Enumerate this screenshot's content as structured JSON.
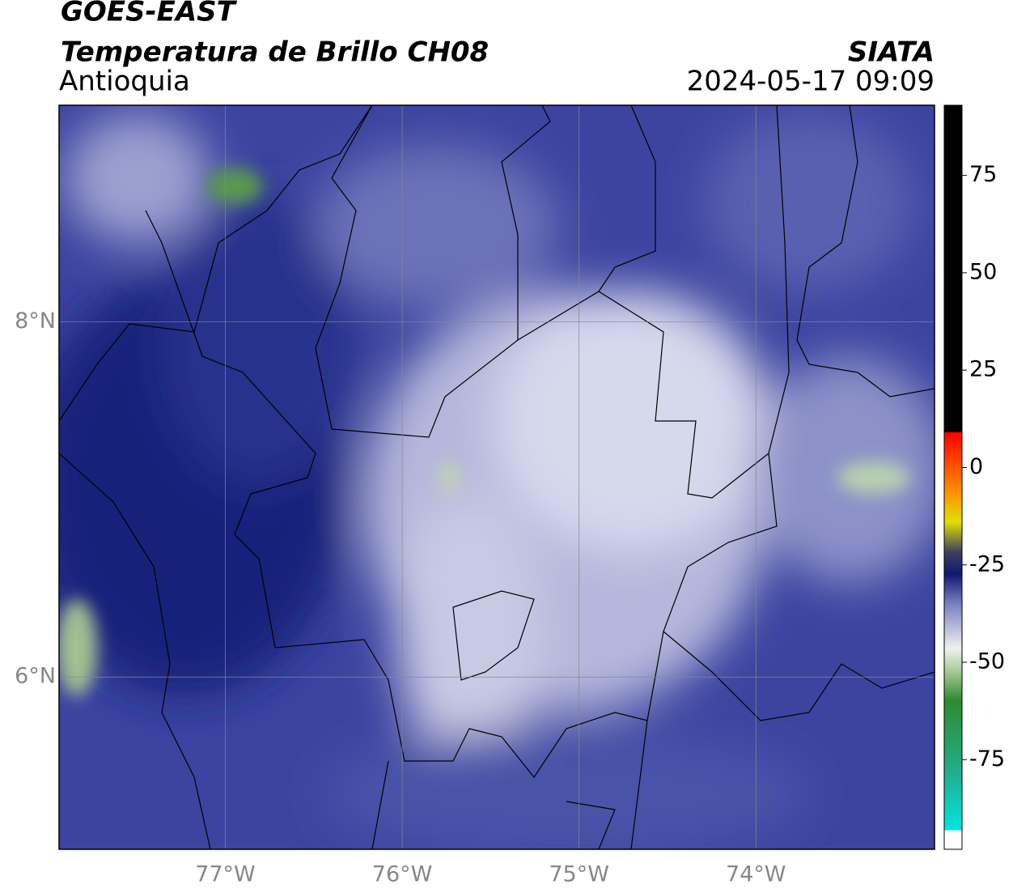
{
  "header": {
    "source": "GOES-EAST",
    "product": "Temperatura de Brillo CH08",
    "region": "Antioquia",
    "agency": "SIATA",
    "datetime": "2024-05-17 09:09"
  },
  "map": {
    "lonlim": [
      -77.94,
      -72.99
    ],
    "latlim": [
      5.03,
      9.22
    ],
    "lon_ticks": [
      {
        "value": -77,
        "label": "77°W"
      },
      {
        "value": -76,
        "label": "76°W"
      },
      {
        "value": -75,
        "label": "75°W"
      },
      {
        "value": -74,
        "label": "74°W"
      }
    ],
    "lat_ticks": [
      {
        "value": 8,
        "label": "8°N"
      },
      {
        "value": 6,
        "label": "6°N"
      }
    ]
  },
  "colorbar": {
    "lim": [
      -98,
      93
    ],
    "ticks": [
      75,
      50,
      25,
      0,
      -25,
      -50,
      -75
    ]
  }
}
